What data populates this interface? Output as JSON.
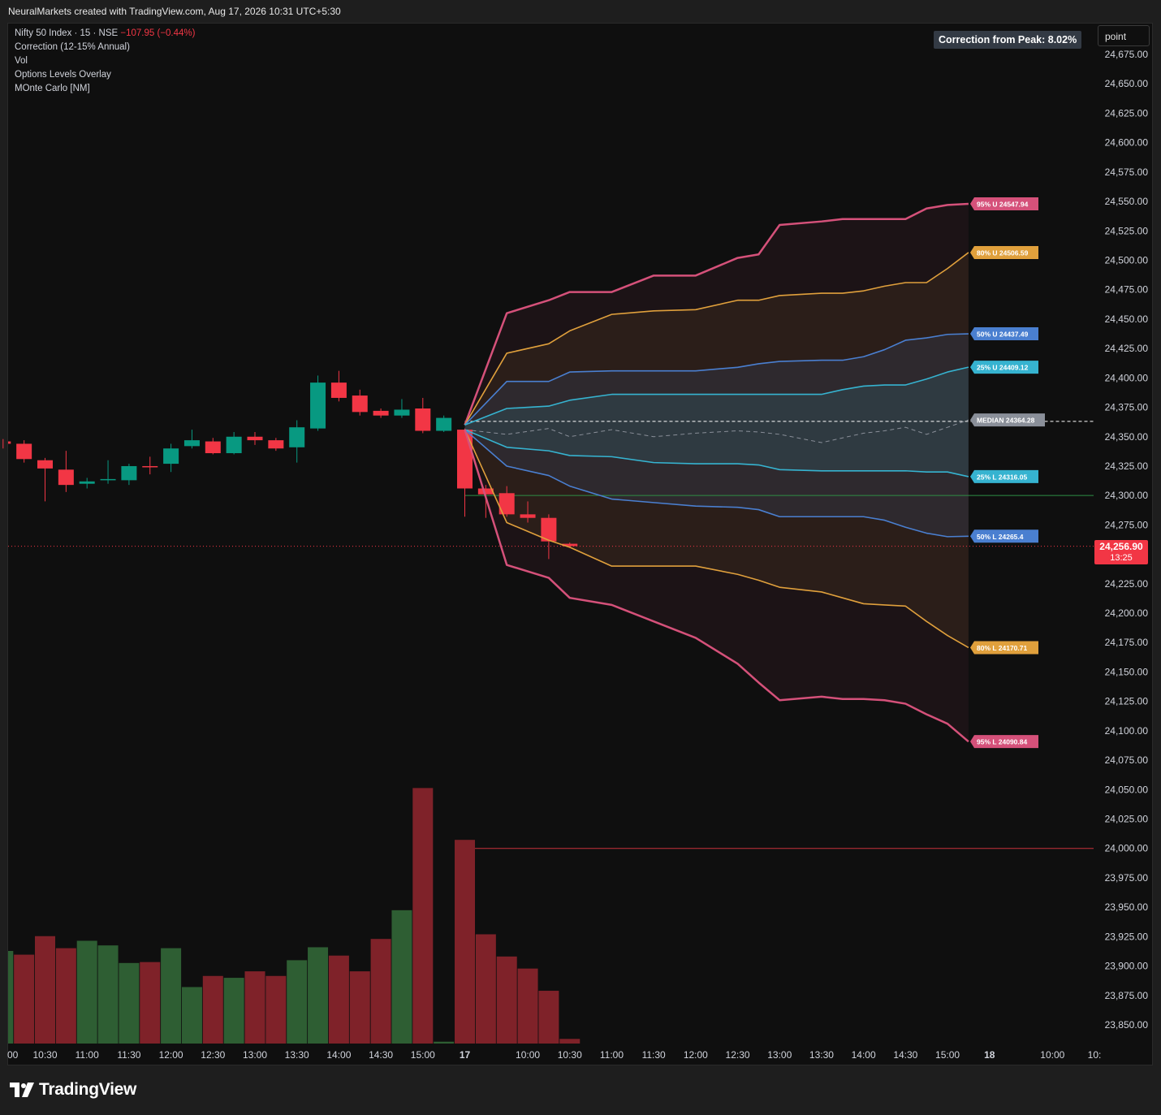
{
  "header": {
    "attribution": "NeuralMarkets created with TradingView.com, Aug 17, 2026 10:31 UTC+5:30"
  },
  "legend": {
    "symbol": "Nifty 50 Index · 15 · NSE",
    "change": "−107.95 (−0.44%)",
    "indicators": [
      "Correction (12-15% Annual)",
      "Vol",
      "Options Levels Overlay",
      "MOnte Carlo [NM]"
    ]
  },
  "correction_label": "Correction from Peak: 8.02%",
  "scale_button": "point",
  "price_tag": {
    "price": "24,256.90",
    "countdown": "13:25"
  },
  "branding": "TradingView",
  "colors": {
    "up_candle": "#089981",
    "down_candle": "#f23645",
    "vol_up": "#2e5e33",
    "vol_down": "#7f2229",
    "band_95": "#d5517a",
    "band_80": "#e0a03c",
    "band_50": "#4a7fd0",
    "band_25": "#36b3d0",
    "median": "#8a8f99"
  },
  "chart_data": {
    "type": "candlestick",
    "symbol": "Nifty 50 Index",
    "interval": "15",
    "exchange": "NSE",
    "ylim": [
      23838,
      24690
    ],
    "yticks": [
      24675,
      24650,
      24625,
      24600,
      24575,
      24550,
      24525,
      24500,
      24475,
      24450,
      24425,
      24400,
      24375,
      24350,
      24325,
      24300,
      24275,
      24225,
      24200,
      24175,
      24150,
      24125,
      24100,
      24075,
      24050,
      24025,
      24000,
      23975,
      23950,
      23925,
      23900,
      23875,
      23850
    ],
    "ytick_labels": [
      "24,675.00",
      "24,650.00",
      "24,625.00",
      "24,600.00",
      "24,575.00",
      "24,550.00",
      "24,525.00",
      "24,500.00",
      "24,475.00",
      "24,450.00",
      "24,425.00",
      "24,400.00",
      "24,375.00",
      "24,350.00",
      "24,325.00",
      "24,300.00",
      "24,275.00",
      "24,225.00",
      "24,200.00",
      "24,175.00",
      "24,150.00",
      "24,125.00",
      "24,100.00",
      "24,075.00",
      "24,050.00",
      "24,025.00",
      "24,000.00",
      "23,975.00",
      "23,950.00",
      "23,925.00",
      "23,900.00",
      "23,875.00",
      "23,850.00"
    ],
    "xticks": [
      {
        "slot": 0,
        "label": "10:30"
      },
      {
        "slot": 2,
        "label": "11:00"
      },
      {
        "slot": 4,
        "label": "11:30"
      },
      {
        "slot": 6,
        "label": "12:00"
      },
      {
        "slot": 8,
        "label": "12:30"
      },
      {
        "slot": 10,
        "label": "13:00"
      },
      {
        "slot": 12,
        "label": "13:30"
      },
      {
        "slot": 14,
        "label": "14:00"
      },
      {
        "slot": 16,
        "label": "14:30"
      },
      {
        "slot": 18,
        "label": "15:00"
      },
      {
        "slot": 20,
        "label": "17"
      },
      {
        "slot": 23,
        "label": "10:00"
      },
      {
        "slot": 25,
        "label": "10:30"
      },
      {
        "slot": 27,
        "label": "11:00"
      },
      {
        "slot": 29,
        "label": "11:30"
      },
      {
        "slot": 31,
        "label": "12:00"
      },
      {
        "slot": 33,
        "label": "12:30"
      },
      {
        "slot": 35,
        "label": "13:00"
      },
      {
        "slot": 37,
        "label": "13:30"
      },
      {
        "slot": 39,
        "label": "14:00"
      },
      {
        "slot": 41,
        "label": "14:30"
      },
      {
        "slot": 43,
        "label": "15:00"
      },
      {
        "slot": 45,
        "label": "18"
      },
      {
        "slot": 48,
        "label": "10:00"
      },
      {
        "slot": 50,
        "label": "10:"
      }
    ],
    "candles": [
      {
        "slot": -2,
        "o": 24346,
        "h": 24348,
        "l": 24340,
        "c": 24344
      },
      {
        "slot": -1,
        "o": 24344,
        "h": 24347,
        "l": 24328,
        "c": 24331
      },
      {
        "slot": 0,
        "o": 24330,
        "h": 24332,
        "l": 24295,
        "c": 24323
      },
      {
        "slot": 1,
        "o": 24322,
        "h": 24338,
        "l": 24303,
        "c": 24309
      },
      {
        "slot": 2,
        "o": 24310,
        "h": 24315,
        "l": 24306,
        "c": 24312
      },
      {
        "slot": 3,
        "o": 24313,
        "h": 24330,
        "l": 24310,
        "c": 24314
      },
      {
        "slot": 4,
        "o": 24313,
        "h": 24327,
        "l": 24309,
        "c": 24325
      },
      {
        "slot": 5,
        "o": 24325,
        "h": 24333,
        "l": 24318,
        "c": 24324
      },
      {
        "slot": 6,
        "o": 24327,
        "h": 24344,
        "l": 24320,
        "c": 24340
      },
      {
        "slot": 7,
        "o": 24342,
        "h": 24356,
        "l": 24340,
        "c": 24347
      },
      {
        "slot": 8,
        "o": 24346,
        "h": 24349,
        "l": 24335,
        "c": 24336
      },
      {
        "slot": 9,
        "o": 24336,
        "h": 24354,
        "l": 24335,
        "c": 24350
      },
      {
        "slot": 10,
        "o": 24350,
        "h": 24354,
        "l": 24343,
        "c": 24347
      },
      {
        "slot": 11,
        "o": 24347,
        "h": 24349,
        "l": 24338,
        "c": 24340
      },
      {
        "slot": 12,
        "o": 24341,
        "h": 24364,
        "l": 24328,
        "c": 24358
      },
      {
        "slot": 13,
        "o": 24357,
        "h": 24402,
        "l": 24355,
        "c": 24396
      },
      {
        "slot": 14,
        "o": 24396,
        "h": 24406,
        "l": 24380,
        "c": 24383
      },
      {
        "slot": 15,
        "o": 24385,
        "h": 24390,
        "l": 24368,
        "c": 24371
      },
      {
        "slot": 16,
        "o": 24372,
        "h": 24374,
        "l": 24366,
        "c": 24368
      },
      {
        "slot": 17,
        "o": 24368,
        "h": 24382,
        "l": 24366,
        "c": 24373
      },
      {
        "slot": 18,
        "o": 24374,
        "h": 24383,
        "l": 24353,
        "c": 24355
      },
      {
        "slot": 19,
        "o": 24355,
        "h": 24368,
        "l": 24354,
        "c": 24366
      },
      {
        "slot": 20,
        "o": 24356,
        "h": 24357,
        "l": 24282,
        "c": 24306
      },
      {
        "slot": 21,
        "o": 24306,
        "h": 24309,
        "l": 24281,
        "c": 24301
      },
      {
        "slot": 22,
        "o": 24302,
        "h": 24308,
        "l": 24282,
        "c": 24284
      },
      {
        "slot": 23,
        "o": 24284,
        "h": 24295,
        "l": 24277,
        "c": 24281
      },
      {
        "slot": 24,
        "o": 24281,
        "h": 24284,
        "l": 24246,
        "c": 24261
      },
      {
        "slot": 25,
        "o": 24259,
        "h": 24260,
        "l": 24256,
        "c": 24257
      }
    ],
    "volume": {
      "scale_note": "relative volume (units not shown)",
      "bars": [
        {
          "slot": -2,
          "v": 1.0,
          "dir": "up"
        },
        {
          "slot": -1,
          "v": 0.96,
          "dir": "down"
        },
        {
          "slot": 0,
          "v": 1.16,
          "dir": "down"
        },
        {
          "slot": 1,
          "v": 1.03,
          "dir": "down"
        },
        {
          "slot": 2,
          "v": 1.11,
          "dir": "up"
        },
        {
          "slot": 3,
          "v": 1.06,
          "dir": "up"
        },
        {
          "slot": 4,
          "v": 0.87,
          "dir": "up"
        },
        {
          "slot": 5,
          "v": 0.88,
          "dir": "down"
        },
        {
          "slot": 6,
          "v": 1.03,
          "dir": "up"
        },
        {
          "slot": 7,
          "v": 0.61,
          "dir": "up"
        },
        {
          "slot": 8,
          "v": 0.73,
          "dir": "down"
        },
        {
          "slot": 9,
          "v": 0.71,
          "dir": "up"
        },
        {
          "slot": 10,
          "v": 0.78,
          "dir": "down"
        },
        {
          "slot": 11,
          "v": 0.73,
          "dir": "down"
        },
        {
          "slot": 12,
          "v": 0.9,
          "dir": "up"
        },
        {
          "slot": 13,
          "v": 1.04,
          "dir": "up"
        },
        {
          "slot": 14,
          "v": 0.95,
          "dir": "down"
        },
        {
          "slot": 15,
          "v": 0.78,
          "dir": "down"
        },
        {
          "slot": 16,
          "v": 1.13,
          "dir": "down"
        },
        {
          "slot": 17,
          "v": 1.44,
          "dir": "up"
        },
        {
          "slot": 18,
          "v": 2.76,
          "dir": "down"
        },
        {
          "slot": 19,
          "v": 0.02,
          "dir": "up"
        },
        {
          "slot": 20,
          "v": 2.2,
          "dir": "down"
        },
        {
          "slot": 21,
          "v": 1.18,
          "dir": "down"
        },
        {
          "slot": 22,
          "v": 0.94,
          "dir": "down"
        },
        {
          "slot": 23,
          "v": 0.81,
          "dir": "down"
        },
        {
          "slot": 24,
          "v": 0.57,
          "dir": "down"
        },
        {
          "slot": 25,
          "v": 0.05,
          "dir": "down"
        }
      ]
    },
    "monte_carlo": {
      "slots": [
        20,
        22,
        24,
        25,
        27,
        29,
        31,
        33,
        34,
        35,
        37,
        38,
        39,
        40,
        41,
        42,
        43,
        44
      ],
      "bands": [
        {
          "name": "95% U",
          "label_value": "24547.94",
          "values": [
            24360,
            24455,
            24466,
            24473,
            24473,
            24487,
            24487,
            24502,
            24505,
            24530,
            24533,
            24535,
            24535,
            24535,
            24535,
            24544,
            24547,
            24547.94
          ]
        },
        {
          "name": "80% U",
          "label_value": "24506.59",
          "values": [
            24360,
            24421,
            24429,
            24440,
            24454,
            24457,
            24458,
            24466,
            24466,
            24470,
            24472,
            24472,
            24474,
            24478,
            24481,
            24481,
            24493,
            24506.59
          ]
        },
        {
          "name": "50% U",
          "label_value": "24437.49",
          "values": [
            24360,
            24397,
            24397,
            24405,
            24406,
            24406,
            24406,
            24409,
            24412,
            24414,
            24415,
            24415,
            24418,
            24424,
            24432,
            24434,
            24437,
            24437.49
          ]
        },
        {
          "name": "25% U",
          "label_value": "24409.12",
          "values": [
            24360,
            24374,
            24376,
            24381,
            24386,
            24386,
            24386,
            24386,
            24386,
            24386,
            24386,
            24390,
            24393,
            24394,
            24394,
            24399,
            24405,
            24409.12
          ]
        },
        {
          "name": "MEDIAN",
          "label_value": "24364.28",
          "values": [
            24356,
            24352,
            24357,
            24350,
            24356,
            24350,
            24353,
            24355,
            24354,
            24352,
            24345,
            24349,
            24353,
            24355,
            24358,
            24352,
            24358,
            24364.28
          ]
        },
        {
          "name": "25% L",
          "label_value": "24316.05",
          "values": [
            24356,
            24341,
            24338,
            24334,
            24333,
            24328,
            24327,
            24327,
            24326,
            24322,
            24321,
            24321,
            24321,
            24321,
            24321,
            24320,
            24320,
            24316.05
          ]
        },
        {
          "name": "50% L",
          "label_value": "24265.4",
          "values": [
            24356,
            24325,
            24317,
            24308,
            24297,
            24294,
            24291,
            24290,
            24288,
            24282,
            24282,
            24282,
            24282,
            24279,
            24273,
            24268,
            24265,
            24265.4
          ]
        },
        {
          "name": "80% L",
          "label_value": "24170.71",
          "values": [
            24356,
            24277,
            24262,
            24256,
            24240,
            24240,
            24240,
            24233,
            24228,
            24222,
            24218,
            24213,
            24208,
            24207,
            24206,
            24193,
            24181,
            24170.71
          ]
        },
        {
          "name": "95% L",
          "label_value": "24090.84",
          "values": [
            24356,
            24241,
            24230,
            24213,
            24207,
            24193,
            24179,
            24157,
            24141,
            24126,
            24129,
            24127,
            24127,
            24126,
            24123,
            24114,
            24106,
            24090.84
          ]
        }
      ]
    },
    "horizontal_levels": [
      {
        "value": 24363,
        "style": "dashed-white"
      },
      {
        "value": 24300,
        "style": "green"
      },
      {
        "value": 24000,
        "style": "red"
      },
      {
        "value": 24256.9,
        "style": "dotted-red"
      }
    ]
  }
}
